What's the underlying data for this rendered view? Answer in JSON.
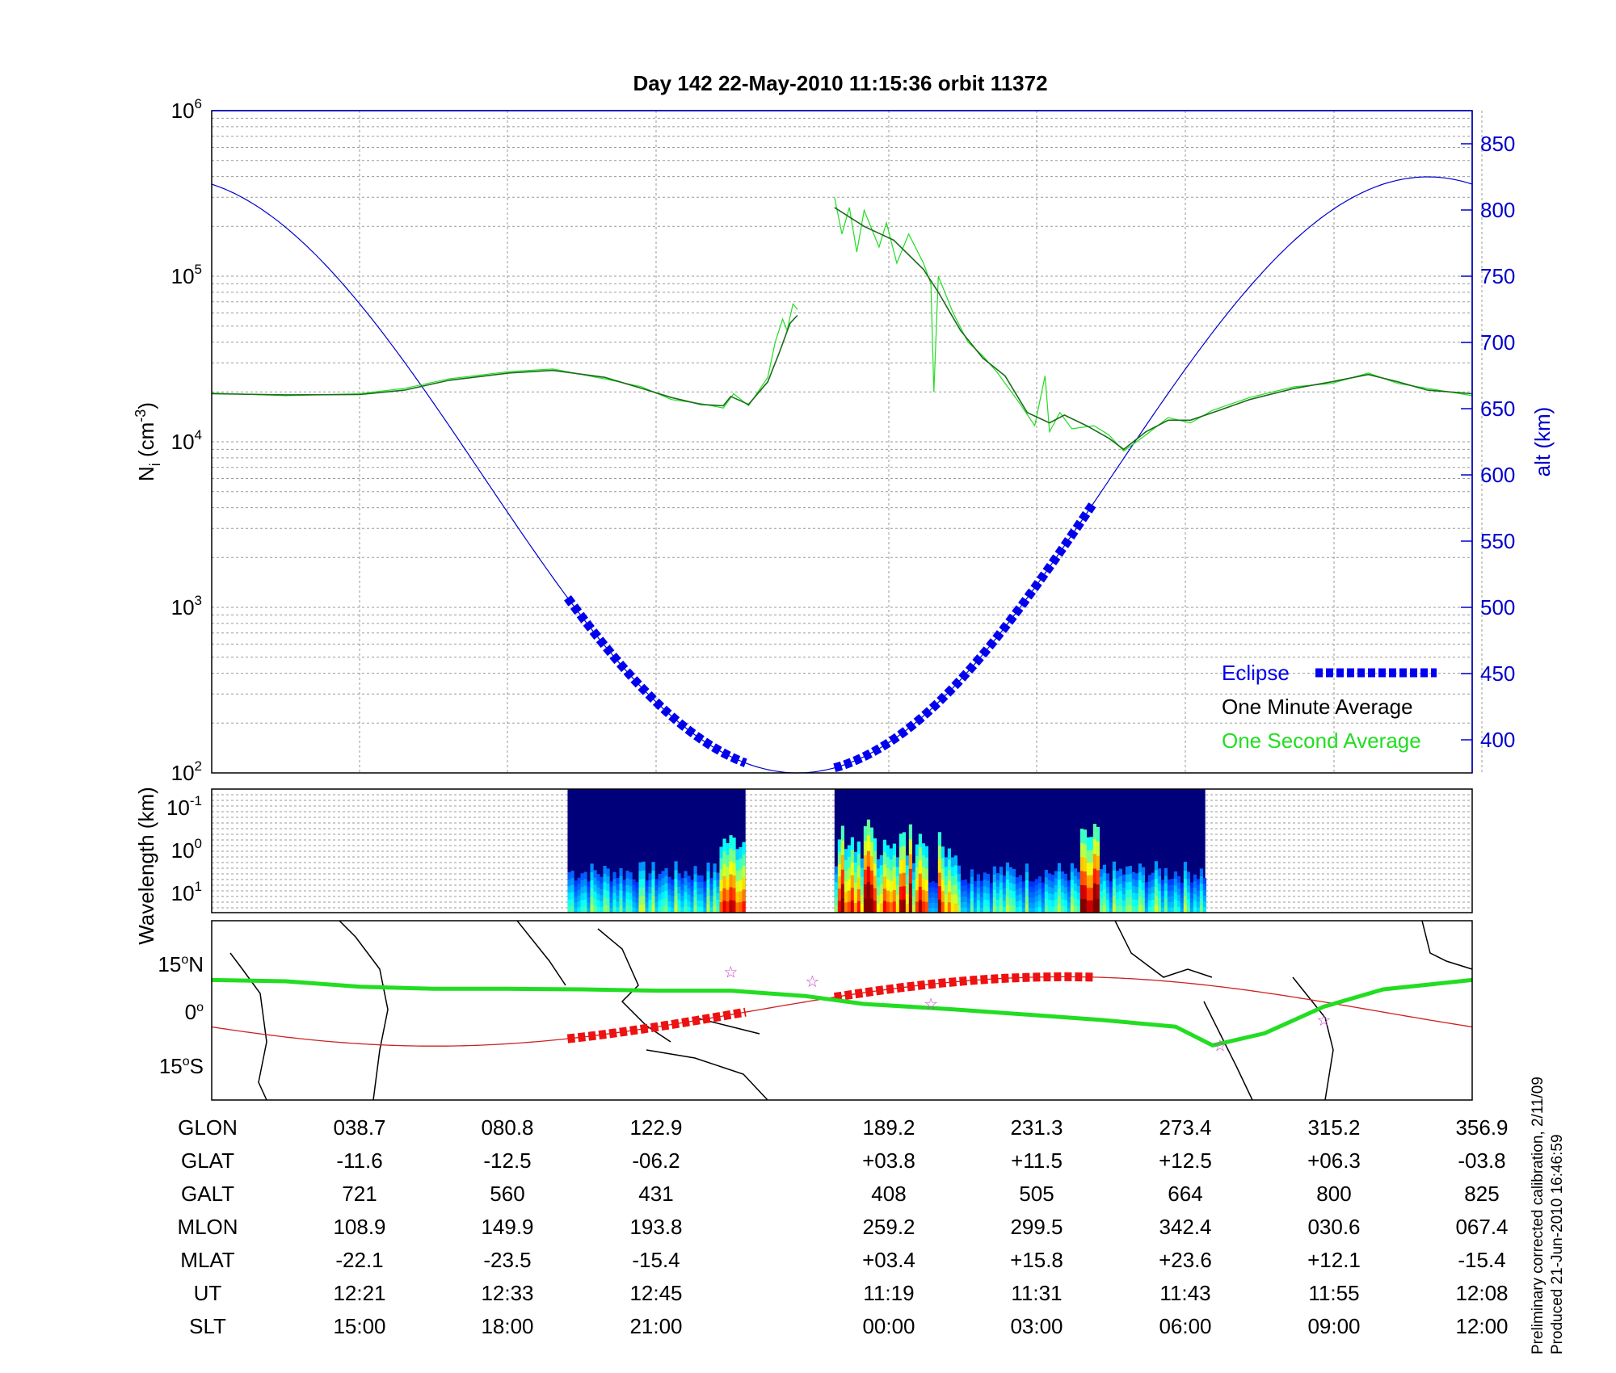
{
  "title": "Day 142  22-May-2010 11:15:36   orbit 11372",
  "footer": {
    "line1": "Preliminary corrected calibration, 2/11/09",
    "line2": "Produced 21-Jun-2010 16:46:59"
  },
  "chart_data": [
    {
      "type": "line",
      "panel": "density",
      "ylabel_left": "N_i (cm^-3)",
      "ylabel_right": "alt (km)",
      "y_scale_left": "log",
      "ylim_left": [
        100,
        1000000
      ],
      "ylim_right": [
        375,
        875
      ],
      "yticks_left": [
        {
          "base": "10",
          "exp": "2"
        },
        {
          "base": "10",
          "exp": "3"
        },
        {
          "base": "10",
          "exp": "4"
        },
        {
          "base": "10",
          "exp": "5"
        },
        {
          "base": "10",
          "exp": "6"
        }
      ],
      "yticks_right": [
        "400",
        "450",
        "500",
        "550",
        "600",
        "650",
        "700",
        "750",
        "800",
        "850"
      ],
      "grid": true,
      "legend_position": "bottom-right",
      "legend": [
        {
          "label": "Eclipse",
          "color": "#0000ee",
          "style": "thick-dashed"
        },
        {
          "label": "One Minute Average",
          "color": "#000000",
          "style": "line"
        },
        {
          "label": "One Second Average",
          "color": "#22dd22",
          "style": "line"
        }
      ],
      "x_index_range": [
        0,
        8.5
      ],
      "series": [
        {
          "name": "One Minute Average",
          "color": "#1b6b1b",
          "segments": [
            [
              [
                0,
                19500
              ],
              [
                0.5,
                19200
              ],
              [
                1,
                19300
              ],
              [
                1.3,
                20500
              ],
              [
                1.6,
                23500
              ],
              [
                2,
                26000
              ],
              [
                2.3,
                27000
              ],
              [
                2.65,
                24500
              ],
              [
                2.9,
                21000
              ],
              [
                3.1,
                18500
              ],
              [
                3.3,
                16800
              ],
              [
                3.45,
                16500
              ],
              [
                3.5,
                18800
              ],
              [
                3.62,
                16800
              ],
              [
                3.75,
                23000
              ],
              [
                3.83,
                35000
              ],
              [
                3.9,
                52000
              ],
              [
                3.95,
                58000
              ]
            ],
            [
              [
                4.2,
                260000
              ],
              [
                4.4,
                200000
              ],
              [
                4.6,
                165000
              ],
              [
                4.8,
                110000
              ],
              [
                4.9,
                80000
              ],
              [
                5.05,
                47000
              ],
              [
                5.2,
                32000
              ],
              [
                5.35,
                25000
              ],
              [
                5.5,
                15000
              ],
              [
                5.65,
                13000
              ],
              [
                5.75,
                14500
              ],
              [
                5.9,
                12500
              ],
              [
                6.05,
                10500
              ],
              [
                6.15,
                9000
              ],
              [
                6.3,
                11500
              ],
              [
                6.45,
                13500
              ],
              [
                6.6,
                13500
              ],
              [
                6.75,
                15000
              ],
              [
                7,
                18000
              ],
              [
                7.3,
                21000
              ],
              [
                7.55,
                23000
              ],
              [
                7.8,
                25500
              ],
              [
                8,
                23000
              ],
              [
                8.2,
                20500
              ],
              [
                8.5,
                19500
              ]
            ]
          ]
        },
        {
          "name": "One Second Average",
          "color": "#22dd22",
          "segments": [
            [
              [
                0,
                19700
              ],
              [
                0.5,
                19000
              ],
              [
                1,
                19500
              ],
              [
                1.3,
                21000
              ],
              [
                1.6,
                24000
              ],
              [
                2,
                26500
              ],
              [
                2.3,
                27500
              ],
              [
                2.65,
                24000
              ],
              [
                2.9,
                21500
              ],
              [
                3.1,
                18000
              ],
              [
                3.3,
                17000
              ],
              [
                3.45,
                16000
              ],
              [
                3.52,
                19500
              ],
              [
                3.62,
                16500
              ],
              [
                3.75,
                24500
              ],
              [
                3.8,
                40000
              ],
              [
                3.85,
                55000
              ],
              [
                3.88,
                47000
              ],
              [
                3.92,
                68000
              ],
              [
                3.95,
                63000
              ]
            ],
            [
              [
                4.2,
                300000
              ],
              [
                4.25,
                180000
              ],
              [
                4.3,
                260000
              ],
              [
                4.35,
                140000
              ],
              [
                4.4,
                250000
              ],
              [
                4.5,
                150000
              ],
              [
                4.55,
                210000
              ],
              [
                4.62,
                120000
              ],
              [
                4.7,
                180000
              ],
              [
                4.8,
                120000
              ],
              [
                4.85,
                90000
              ],
              [
                4.87,
                20000
              ],
              [
                4.9,
                100000
              ],
              [
                5.0,
                60000
              ],
              [
                5.1,
                40000
              ],
              [
                5.2,
                33000
              ],
              [
                5.3,
                26000
              ],
              [
                5.45,
                17000
              ],
              [
                5.55,
                12500
              ],
              [
                5.62,
                25000
              ],
              [
                5.65,
                11500
              ],
              [
                5.72,
                15000
              ],
              [
                5.8,
                12000
              ],
              [
                5.95,
                12500
              ],
              [
                6.05,
                11000
              ],
              [
                6.15,
                8800
              ],
              [
                6.3,
                11000
              ],
              [
                6.45,
                14000
              ],
              [
                6.6,
                13000
              ],
              [
                6.75,
                15500
              ],
              [
                7,
                18500
              ],
              [
                7.3,
                21500
              ],
              [
                7.55,
                22500
              ],
              [
                7.8,
                26000
              ],
              [
                8,
                22500
              ],
              [
                8.2,
                21000
              ],
              [
                8.5,
                19000
              ]
            ]
          ]
        },
        {
          "name": "alt",
          "color": "#0000cc",
          "axis": "right",
          "x_period_points": 8.5,
          "model": {
            "center": 600,
            "amplitude": 225,
            "peak_x": 8.2,
            "period": 8.5
          }
        }
      ],
      "eclipse_segments": [
        [
          2.4,
          3.6
        ],
        [
          4.2,
          5.95
        ]
      ]
    },
    {
      "type": "heatmap",
      "panel": "spectrogram",
      "ylabel": "Wavelength (km)",
      "yticks": [
        {
          "base": "10",
          "exp": "-1"
        },
        {
          "base": "10",
          "exp": "0"
        },
        {
          "base": "10",
          "exp": "1"
        }
      ],
      "data_blocks": [
        [
          2.4,
          3.6
        ],
        [
          4.2,
          6.7
        ]
      ],
      "colormap": "jet"
    },
    {
      "type": "line",
      "panel": "map",
      "yticks": [
        {
          "deg": "15",
          "hemi": "N"
        },
        {
          "deg": "0",
          "hemi": ""
        },
        {
          "deg": "15",
          "hemi": "S"
        }
      ],
      "ylim": [
        -20,
        20
      ],
      "series": [
        {
          "name": "magnetic equator",
          "color": "#22dd22",
          "points": [
            [
              0,
              12
            ],
            [
              0.5,
              11.5
            ],
            [
              1,
              9.5
            ],
            [
              1.5,
              8.7
            ],
            [
              2,
              8.7
            ],
            [
              2.5,
              8.5
            ],
            [
              3,
              8
            ],
            [
              3.5,
              8
            ],
            [
              4,
              6
            ],
            [
              4.4,
              3
            ],
            [
              5,
              1
            ],
            [
              5.5,
              -1
            ],
            [
              6,
              -3
            ],
            [
              6.5,
              -5.5
            ],
            [
              6.75,
              -12.5
            ],
            [
              7.1,
              -8
            ],
            [
              7.5,
              2
            ],
            [
              7.9,
              8.5
            ],
            [
              8.5,
              12
            ]
          ]
        },
        {
          "name": "satellite track",
          "color": "#cc2222",
          "model": {
            "amplitude": 13,
            "offset": 0.2,
            "trough_x": 1.5,
            "period": 8.5
          }
        }
      ],
      "track_highlight_segments": [
        [
          2.4,
          3.6
        ],
        [
          4.2,
          5.95
        ]
      ],
      "stars": [
        [
          3.5,
          15
        ],
        [
          4.05,
          11.5
        ],
        [
          4.85,
          3
        ],
        [
          6.8,
          -12.5
        ],
        [
          7.5,
          -3
        ]
      ]
    }
  ],
  "table": {
    "rows": [
      {
        "label": "GLON",
        "values": [
          "038.7",
          "080.8",
          "122.9",
          "189.2",
          "231.3",
          "273.4",
          "315.2",
          "356.9"
        ]
      },
      {
        "label": "GLAT",
        "values": [
          "-11.6",
          "-12.5",
          "-06.2",
          "+03.8",
          "+11.5",
          "+12.5",
          "+06.3",
          "-03.8"
        ]
      },
      {
        "label": "GALT",
        "values": [
          "721",
          "560",
          "431",
          "408",
          "505",
          "664",
          "800",
          "825"
        ]
      },
      {
        "label": "MLON",
        "values": [
          "108.9",
          "149.9",
          "193.8",
          "259.2",
          "299.5",
          "342.4",
          "030.6",
          "067.4"
        ]
      },
      {
        "label": "MLAT",
        "values": [
          "-22.1",
          "-23.5",
          "-15.4",
          "+03.4",
          "+15.8",
          "+23.6",
          "+12.1",
          "-15.4"
        ]
      },
      {
        "label": "UT",
        "values": [
          "12:21",
          "12:33",
          "12:45",
          "11:19",
          "11:31",
          "11:43",
          "11:55",
          "12:08"
        ]
      },
      {
        "label": "SLT",
        "values": [
          "15:00",
          "18:00",
          "21:00",
          "00:00",
          "03:00",
          "06:00",
          "09:00",
          "12:00"
        ]
      }
    ]
  }
}
